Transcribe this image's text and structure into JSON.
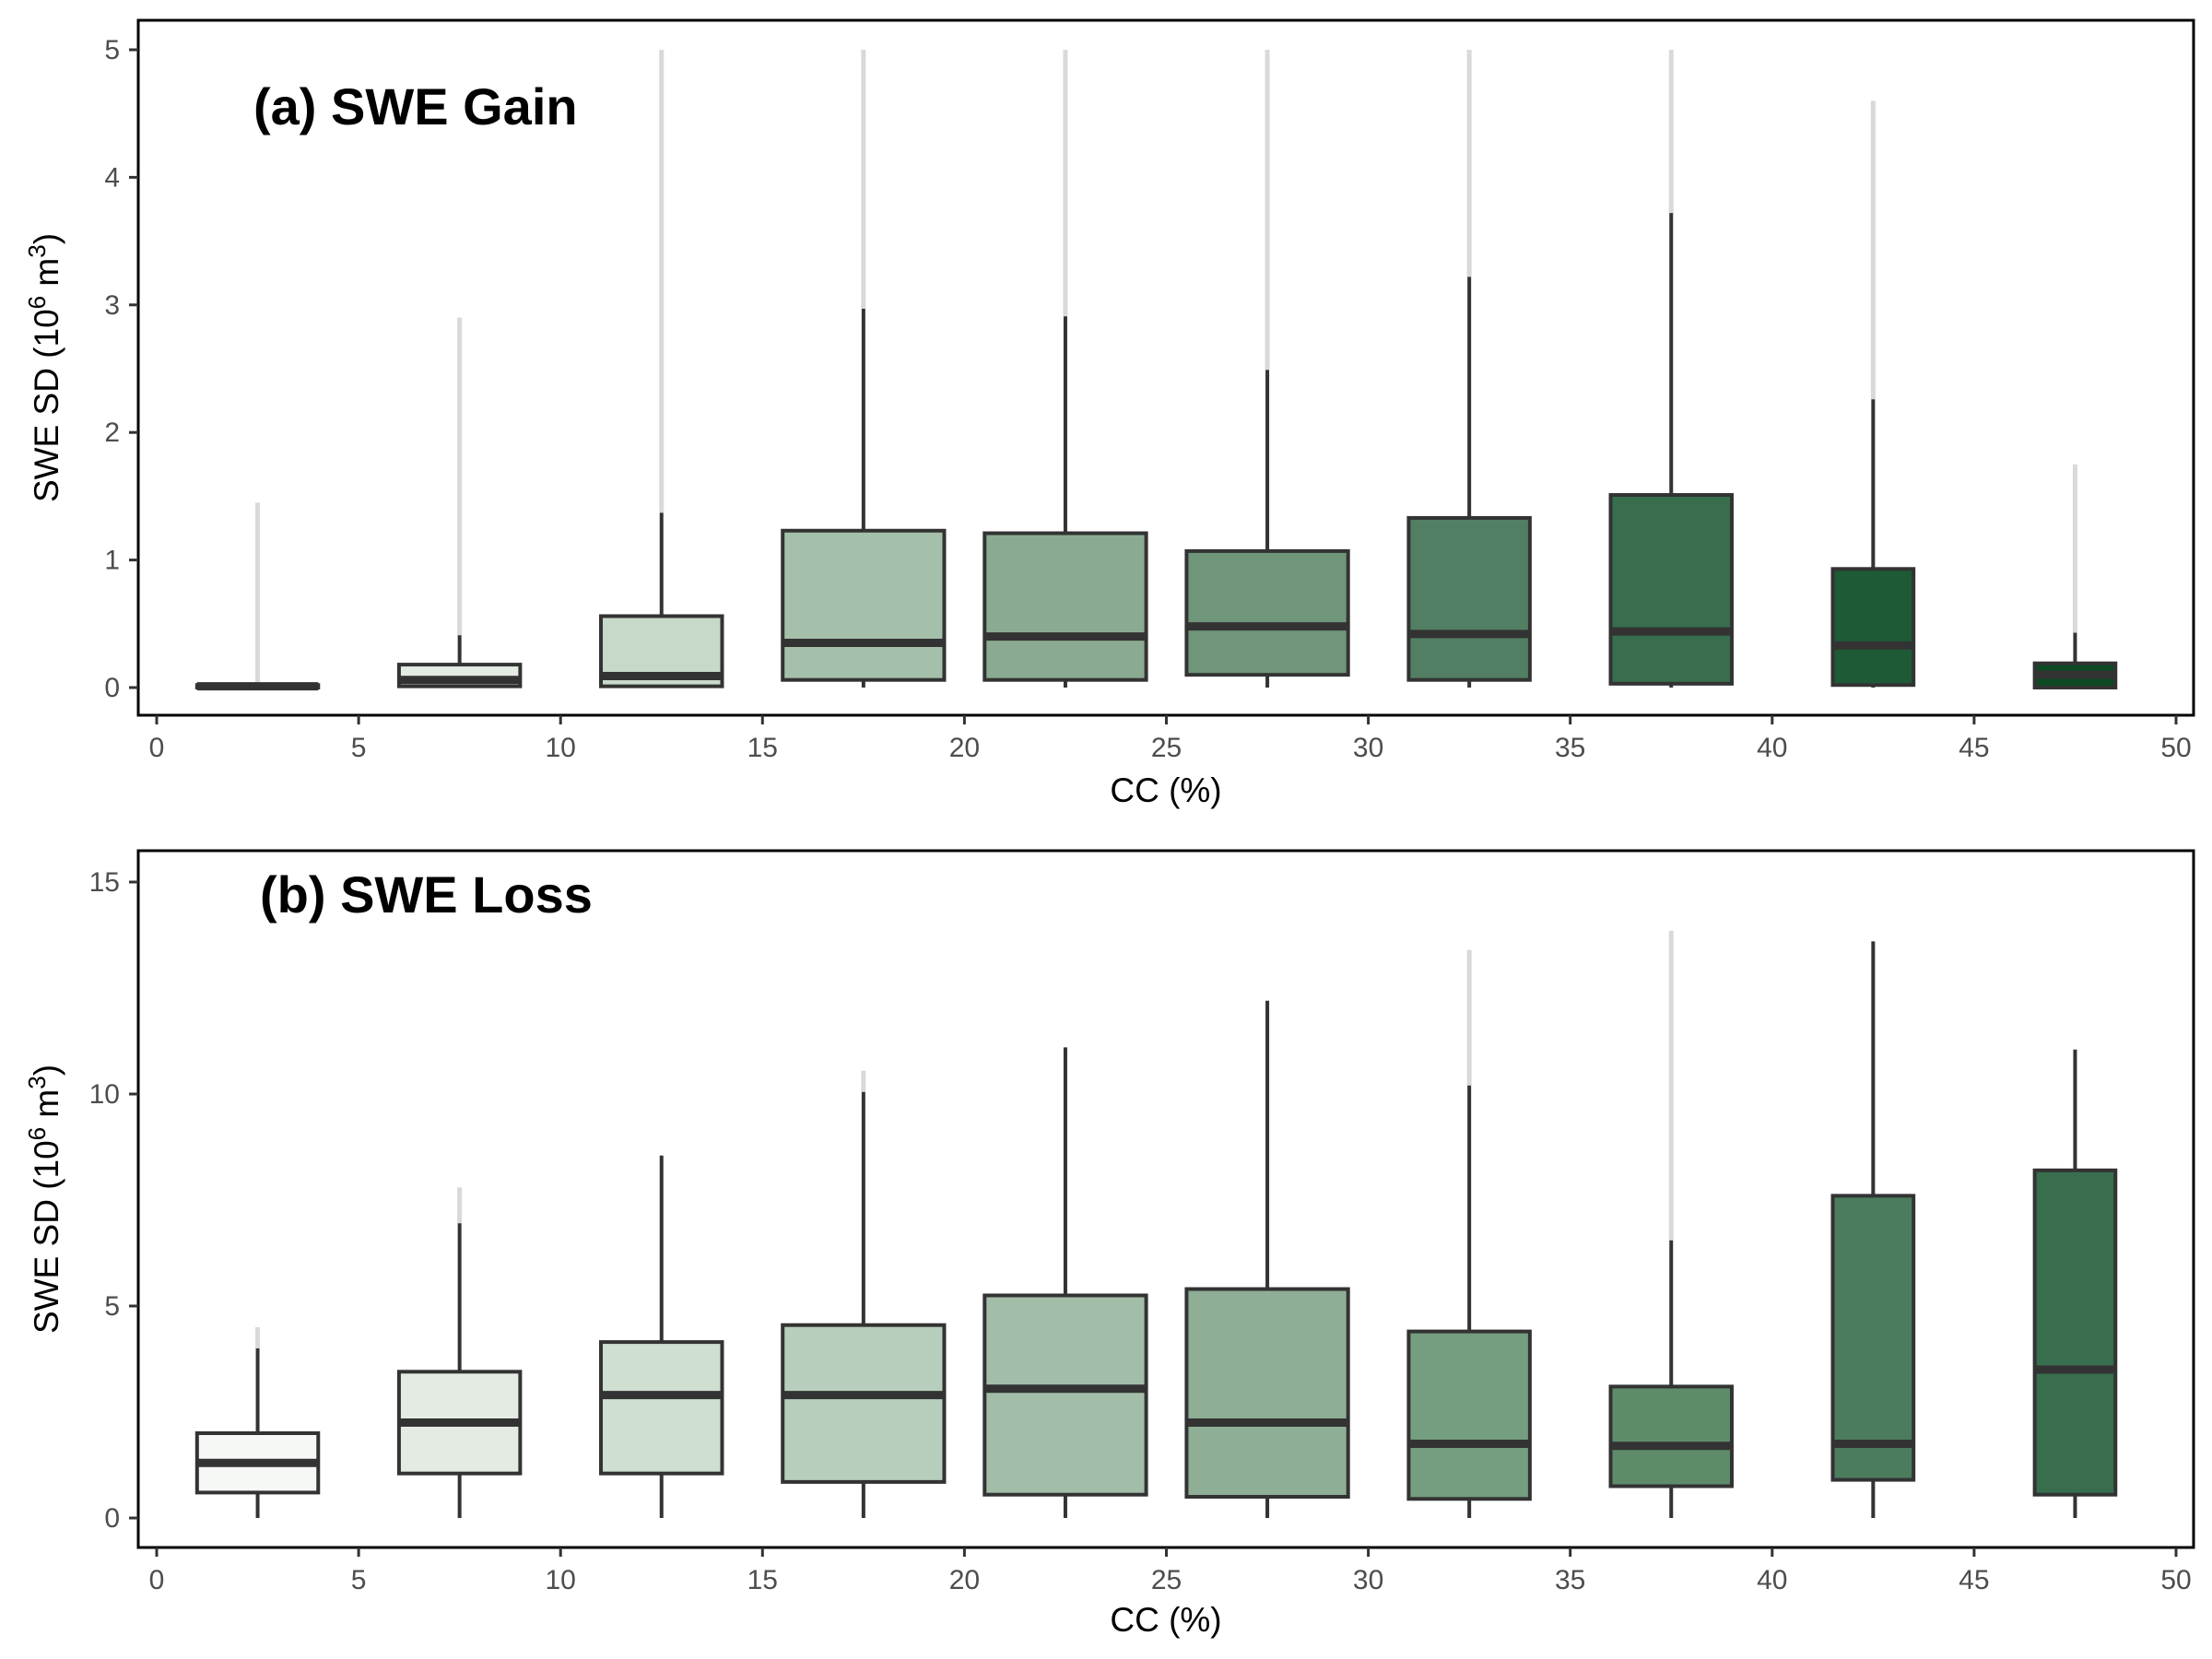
{
  "figure": {
    "ylabel": "SWE SD (10",
    "ylabel_sup": "6",
    "ylabel_unit": " m",
    "ylabel_unit_sup": "3",
    "ylabel_close": ")",
    "xlabel": "CC (%)"
  },
  "chart_data": [
    {
      "type": "box",
      "title": "(a) SWE Gain",
      "xlabel": "CC (%)",
      "ylabel": "SWE SD (10^6 m^3)",
      "xlim": [
        0,
        50
      ],
      "ylim": [
        0,
        5
      ],
      "xticks": [
        0,
        5,
        10,
        15,
        20,
        25,
        30,
        35,
        40,
        45,
        50
      ],
      "yticks": [
        0,
        1,
        2,
        3,
        4,
        5
      ],
      "grid": false,
      "boxes": [
        {
          "x_left": 1,
          "x_right": 4,
          "whisker_low": 0,
          "q1": 0,
          "median": 0.01,
          "q3": 0.02,
          "whisker_high": 0.03,
          "outlier_max": 1.45,
          "fill": "#f5f8f5"
        },
        {
          "x_left": 6,
          "x_right": 9,
          "whisker_low": 0,
          "q1": 0.01,
          "median": 0.06,
          "q3": 0.18,
          "whisker_high": 0.41,
          "outlier_max": 2.9,
          "fill": "#e3ebe3"
        },
        {
          "x_left": 11,
          "x_right": 14,
          "whisker_low": 0,
          "q1": 0.01,
          "median": 0.09,
          "q3": 0.56,
          "whisker_high": 1.37,
          "outlier_max": 5.0,
          "fill": "#c7d9c8"
        },
        {
          "x_left": 15.5,
          "x_right": 19.5,
          "whisker_low": 0,
          "q1": 0.06,
          "median": 0.35,
          "q3": 1.23,
          "whisker_high": 2.97,
          "outlier_max": 5.0,
          "fill": "#a5c0aa"
        },
        {
          "x_left": 20.5,
          "x_right": 24.5,
          "whisker_low": 0,
          "q1": 0.06,
          "median": 0.4,
          "q3": 1.21,
          "whisker_high": 2.91,
          "outlier_max": 5.0,
          "fill": "#8aab91"
        },
        {
          "x_left": 25.5,
          "x_right": 29.5,
          "whisker_low": 0,
          "q1": 0.1,
          "median": 0.48,
          "q3": 1.07,
          "whisker_high": 2.49,
          "outlier_max": 5.0,
          "fill": "#6f957a"
        },
        {
          "x_left": 31,
          "x_right": 34,
          "whisker_low": 0,
          "q1": 0.06,
          "median": 0.42,
          "q3": 1.33,
          "whisker_high": 3.22,
          "outlier_max": 5.0,
          "fill": "#527f63"
        },
        {
          "x_left": 36,
          "x_right": 39,
          "whisker_low": 0,
          "q1": 0.03,
          "median": 0.44,
          "q3": 1.51,
          "whisker_high": 3.72,
          "outlier_max": 5.0,
          "fill": "#386e4e"
        },
        {
          "x_left": 41.5,
          "x_right": 43.5,
          "whisker_low": 0,
          "q1": 0.02,
          "median": 0.33,
          "q3": 0.93,
          "whisker_high": 2.26,
          "outlier_max": 4.6,
          "fill": "#1e5a35"
        },
        {
          "x_left": 46.5,
          "x_right": 48.5,
          "whisker_low": 0,
          "q1": 0,
          "median": 0.1,
          "q3": 0.19,
          "whisker_high": 0.43,
          "outlier_max": 1.75,
          "fill": "#0d4a24"
        }
      ]
    },
    {
      "type": "box",
      "title": "(b) SWE Loss",
      "xlabel": "CC (%)",
      "ylabel": "SWE SD (10^6 m^3)",
      "xlim": [
        0,
        50
      ],
      "ylim": [
        0,
        15
      ],
      "xticks": [
        0,
        5,
        10,
        15,
        20,
        25,
        30,
        35,
        40,
        45,
        50
      ],
      "yticks": [
        0,
        5,
        10,
        15
      ],
      "grid": false,
      "boxes": [
        {
          "x_left": 1,
          "x_right": 4,
          "whisker_low": 0,
          "q1": 0.6,
          "median": 1.3,
          "q3": 2.0,
          "whisker_high": 4.0,
          "outlier_max": 4.5,
          "fill": "#f5f8f5"
        },
        {
          "x_left": 6,
          "x_right": 9,
          "whisker_low": 0,
          "q1": 1.05,
          "median": 2.25,
          "q3": 3.45,
          "whisker_high": 6.95,
          "outlier_max": 7.8,
          "fill": "#e3ebe3"
        },
        {
          "x_left": 11,
          "x_right": 14,
          "whisker_low": 0,
          "q1": 1.05,
          "median": 2.9,
          "q3": 4.15,
          "whisker_high": 8.55,
          "outlier_max": 8.55,
          "fill": "#cfdfd1"
        },
        {
          "x_left": 15.5,
          "x_right": 19.5,
          "whisker_low": 0,
          "q1": 0.85,
          "median": 2.9,
          "q3": 4.55,
          "whisker_high": 10.05,
          "outlier_max": 10.55,
          "fill": "#b8cebc"
        },
        {
          "x_left": 20.5,
          "x_right": 24.5,
          "whisker_low": 0,
          "q1": 0.55,
          "median": 3.05,
          "q3": 5.25,
          "whisker_high": 11.1,
          "outlier_max": 11.1,
          "fill": "#a3bea8"
        },
        {
          "x_left": 25.5,
          "x_right": 29.5,
          "whisker_low": 0,
          "q1": 0.5,
          "median": 2.25,
          "q3": 5.4,
          "whisker_high": 12.2,
          "outlier_max": 12.2,
          "fill": "#8fae96"
        },
        {
          "x_left": 31,
          "x_right": 34,
          "whisker_low": 0,
          "q1": 0.45,
          "median": 1.75,
          "q3": 4.4,
          "whisker_high": 10.2,
          "outlier_max": 13.4,
          "fill": "#759d80"
        },
        {
          "x_left": 36,
          "x_right": 39,
          "whisker_low": 0,
          "q1": 0.75,
          "median": 1.7,
          "q3": 3.1,
          "whisker_high": 6.55,
          "outlier_max": 13.85,
          "fill": "#5e8c6b"
        },
        {
          "x_left": 41.5,
          "x_right": 43.5,
          "whisker_low": 0,
          "q1": 0.9,
          "median": 1.75,
          "q3": 7.6,
          "whisker_high": 13.6,
          "outlier_max": 13.6,
          "fill": "#4c7c5e"
        },
        {
          "x_left": 46.5,
          "x_right": 48.5,
          "whisker_low": 0,
          "q1": 0.55,
          "median": 3.5,
          "q3": 8.2,
          "whisker_high": 11.05,
          "outlier_max": 11.05,
          "fill": "#386e4e"
        }
      ]
    }
  ]
}
